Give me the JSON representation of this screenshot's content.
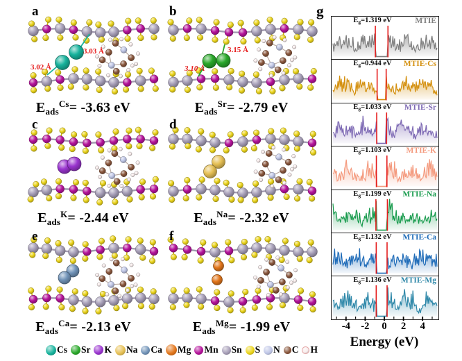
{
  "panels": [
    {
      "letter": "a",
      "ion": "Cs",
      "eads": {
        "e": "E",
        "sub": "ads",
        "sup": "Cs",
        "value": "= -3.63 eV"
      },
      "distances": [
        {
          "text": "3.03 Å"
        },
        {
          "text": "3.02 Å"
        }
      ]
    },
    {
      "letter": "b",
      "ion": "Sr",
      "eads": {
        "e": "E",
        "sub": "ads",
        "sup": "Sr",
        "value": "= -2.79 eV"
      },
      "distances": [
        {
          "text": "3.15 Å"
        },
        {
          "text": "3.10 Å",
          "style": "italic"
        }
      ]
    },
    {
      "letter": "c",
      "ion": "K",
      "eads": {
        "e": "E",
        "sub": "ads",
        "sup": "K",
        "value": "= -2.44 eV"
      },
      "distances": []
    },
    {
      "letter": "d",
      "ion": "Na",
      "eads": {
        "e": "E",
        "sub": "ads",
        "sup": "Na",
        "value": "= -2.32 eV"
      },
      "distances": []
    },
    {
      "letter": "e",
      "ion": "Ca",
      "eads": {
        "e": "E",
        "sub": "ads",
        "sup": "Ca",
        "value": "= -2.13 eV"
      },
      "distances": []
    },
    {
      "letter": "f",
      "ion": "Mg",
      "eads": {
        "e": "E",
        "sub": "ads",
        "sup": "Mg",
        "value": "= -1.99 eV"
      },
      "distances": []
    }
  ],
  "dos": {
    "letter": "g",
    "xlabel": "Energy (eV)",
    "x_ticks": [
      "-4",
      "-2",
      "0",
      "2",
      "4"
    ],
    "x_range": [
      -5.5,
      5.5
    ],
    "gap_marker_color": "#e51c1c",
    "panels": [
      {
        "eg": {
          "pre": "E",
          "sub": "g",
          "value": "=1.319 eV"
        },
        "name": "MTIE",
        "gap": 1.319,
        "color": "#7f7f7f"
      },
      {
        "eg": {
          "pre": "E",
          "sub": "g",
          "value": "=0.944 eV"
        },
        "name": "MTIE-Cs",
        "gap": 0.944,
        "color": "#d4900f"
      },
      {
        "eg": {
          "pre": "E",
          "sub": "g",
          "value": "=1.033 eV"
        },
        "name": "MTIE-Sr",
        "gap": 1.033,
        "color": "#7e6ab4"
      },
      {
        "eg": {
          "pre": "E",
          "sub": "g",
          "value": "=1.103 eV"
        },
        "name": "MTIE-K",
        "gap": 1.103,
        "color": "#f49a7e"
      },
      {
        "eg": {
          "pre": "E",
          "sub": "g",
          "value": "=1.199 eV"
        },
        "name": "MTIE-Na",
        "gap": 1.199,
        "color": "#189b4d"
      },
      {
        "eg": {
          "pre": "E",
          "sub": "g",
          "value": "=1.132 eV"
        },
        "name": "MTIE-Ca",
        "gap": 1.132,
        "color": "#1e6bb8"
      },
      {
        "eg": {
          "pre": "E",
          "sub": "g",
          "value": "=1.136 eV"
        },
        "name": "MTIE-Mg",
        "gap": 1.136,
        "color": "#2d87a8"
      }
    ]
  },
  "legend": [
    {
      "label": "Cs",
      "color": "#17b29c",
      "d": 15
    },
    {
      "label": "Sr",
      "color": "#2aa82a",
      "d": 14
    },
    {
      "label": "K",
      "color": "#9a35cf",
      "d": 14
    },
    {
      "label": "Na",
      "color": "#e6c054",
      "d": 15
    },
    {
      "label": "Ca",
      "color": "#7193b8",
      "d": 13
    },
    {
      "label": "Mg",
      "color": "#e2761b",
      "d": 16
    },
    {
      "label": "Mn",
      "color": "#b5149b",
      "d": 13
    },
    {
      "label": "Sn",
      "color": "#a79fb8",
      "d": 13
    },
    {
      "label": "S",
      "color": "#ecd51c",
      "d": 13
    },
    {
      "label": "N",
      "color": "#bfc6e6",
      "d": 13
    },
    {
      "label": "C",
      "color": "#8a573d",
      "d": 11
    },
    {
      "label": "H",
      "color": "#f9eded",
      "d": 9,
      "rim": "#e6a9a9"
    }
  ],
  "styles": {
    "distance_text_color": "#e51c1c",
    "s_bond": "#ccb30e",
    "metal_bond": "#a29ab0",
    "panel_border": "#252525"
  }
}
